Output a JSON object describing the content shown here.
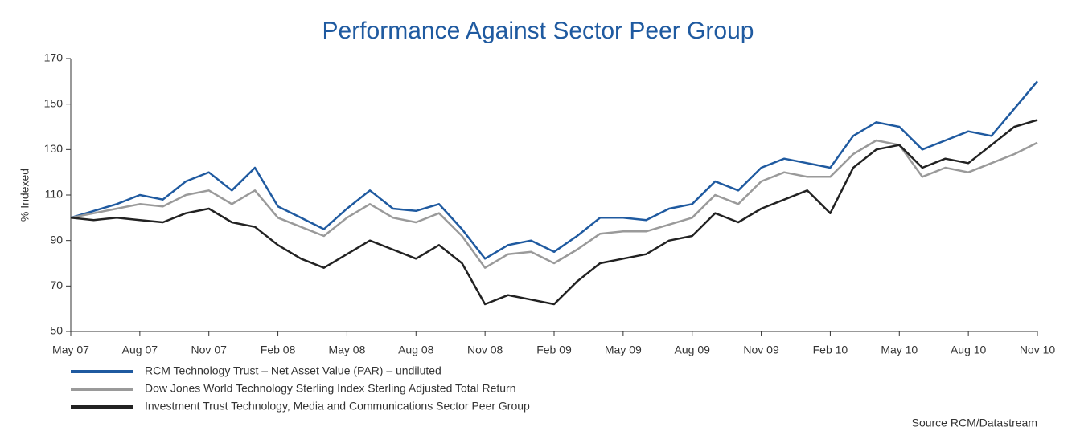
{
  "chart_data": {
    "type": "line",
    "title": "Performance Against Sector Peer Group",
    "y_label": "% Indexed",
    "source": "Source RCM/Datastream",
    "categories": [
      "May 07",
      null,
      null,
      "Aug 07",
      null,
      null,
      "Nov 07",
      null,
      null,
      "Feb 08",
      null,
      null,
      "May 08",
      null,
      null,
      "Aug 08",
      null,
      null,
      "Nov 08",
      null,
      null,
      "Feb 09",
      null,
      null,
      "May 09",
      null,
      null,
      "Aug 09",
      null,
      null,
      "Nov 09",
      null,
      null,
      "Feb 10",
      null,
      null,
      "May 10",
      null,
      null,
      "Aug 10",
      null,
      null,
      "Nov 10"
    ],
    "series": [
      {
        "name": "RCM Technology Trust – Net Asset Value (PAR) – undiluted",
        "color": "#1f5aa0",
        "values": [
          100,
          103,
          106,
          110,
          108,
          116,
          120,
          112,
          122,
          105,
          100,
          95,
          104,
          112,
          104,
          103,
          106,
          95,
          82,
          88,
          90,
          85,
          92,
          100,
          100,
          99,
          104,
          106,
          116,
          112,
          122,
          126,
          124,
          122,
          136,
          142,
          140,
          130,
          134,
          138,
          136,
          148,
          160
        ]
      },
      {
        "name": "Dow Jones World Technology Sterling Index Sterling Adjusted Total Return",
        "color": "#9a9a9a",
        "values": [
          100,
          102,
          104,
          106,
          105,
          110,
          112,
          106,
          112,
          100,
          96,
          92,
          100,
          106,
          100,
          98,
          102,
          92,
          78,
          84,
          85,
          80,
          86,
          93,
          94,
          94,
          97,
          100,
          110,
          106,
          116,
          120,
          118,
          118,
          128,
          134,
          132,
          118,
          122,
          120,
          124,
          128,
          133
        ]
      },
      {
        "name": "Investment Trust Technology, Media and Communications Sector Peer Group",
        "color": "#222222",
        "values": [
          100,
          99,
          100,
          99,
          98,
          102,
          104,
          98,
          96,
          88,
          82,
          78,
          84,
          90,
          86,
          82,
          88,
          80,
          62,
          66,
          64,
          62,
          72,
          80,
          82,
          84,
          90,
          92,
          102,
          98,
          104,
          108,
          112,
          102,
          122,
          130,
          132,
          122,
          126,
          124,
          132,
          140,
          143
        ]
      }
    ],
    "ylim": [
      50,
      170
    ],
    "yticks": [
      50,
      70,
      90,
      110,
      130,
      150,
      170
    ]
  }
}
